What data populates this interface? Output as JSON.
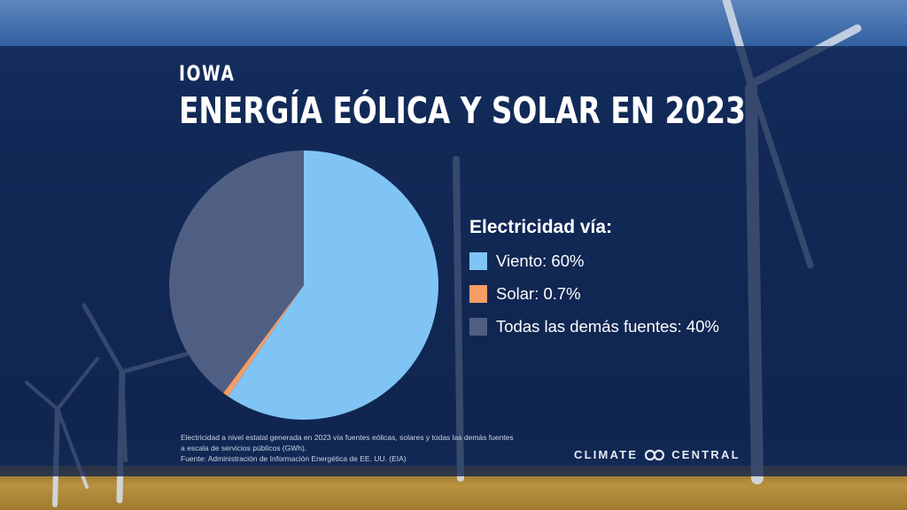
{
  "header": {
    "state": "IOWA",
    "title": "ENERGÍA EÓLICA Y SOLAR EN 2023"
  },
  "chart_data": {
    "type": "pie",
    "title": "ENERGÍA EÓLICA Y SOLAR EN 2023",
    "legend_title": "Electricidad vía:",
    "legend_position": "right",
    "slices": [
      {
        "label": "Viento: 60%",
        "value": 59.5,
        "color": "#7fc4f5"
      },
      {
        "label": "Solar: 0.7%",
        "value": 0.7,
        "color": "#f59d64"
      },
      {
        "label": "Todas las demás fuentes: 40%",
        "value": 39.8,
        "color": "#4f5f84"
      }
    ]
  },
  "footnote": {
    "line1": "Electricidad a nivel estatal generada en 2023 vía fuentes eólicas, solares y todas las demás fuentes",
    "line2": "a escala de servicios públicos (GWh).",
    "line3": "Fuente: Administración de Información Energética de EE. UU. (EIA)"
  },
  "brand": {
    "left": "CLIMATE",
    "right": "CENTRAL",
    "icon": "infinity-loop-icon"
  },
  "colors": {
    "panel": "#10244e",
    "wind": "#7fc4f5",
    "solar": "#f59d64",
    "other": "#4f5f84"
  }
}
